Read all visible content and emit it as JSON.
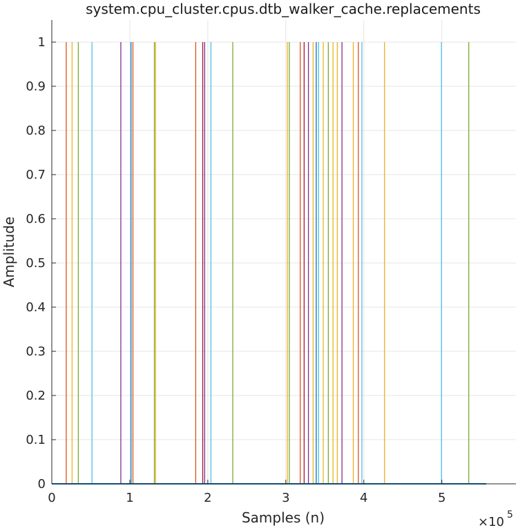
{
  "chart_data": {
    "type": "line",
    "title": "system.cpu_cluster.cpus.dtb_walker_cache.replacements",
    "xlabel": "Samples (n)",
    "ylabel": "Amplitude",
    "x_exponent_label": "×10",
    "x_exponent_power": "5",
    "xlim": [
      0,
      595000
    ],
    "ylim": [
      0,
      1.05
    ],
    "x_ticks": [
      0,
      100000,
      200000,
      300000,
      400000,
      500000
    ],
    "x_tick_labels": [
      "0",
      "1",
      "2",
      "3",
      "4",
      "5"
    ],
    "y_ticks": [
      0,
      0.1,
      0.2,
      0.3,
      0.4,
      0.5,
      0.6,
      0.7,
      0.8,
      0.9,
      1
    ],
    "y_tick_labels": [
      "0",
      "0.1",
      "0.2",
      "0.3",
      "0.4",
      "0.5",
      "0.6",
      "0.7",
      "0.8",
      "0.9",
      "1"
    ],
    "grid": true,
    "baseline": {
      "value": 0,
      "x_end": 557000,
      "color": "#0072bd"
    },
    "spikes": [
      {
        "x": 18500,
        "y": 1,
        "color": "#d95319"
      },
      {
        "x": 26000,
        "y": 1,
        "color": "#edb120"
      },
      {
        "x": 34000,
        "y": 1,
        "color": "#77ac30"
      },
      {
        "x": 51500,
        "y": 1,
        "color": "#4dbeee"
      },
      {
        "x": 88500,
        "y": 1,
        "color": "#7e2f8e"
      },
      {
        "x": 101500,
        "y": 1,
        "color": "#0072bd"
      },
      {
        "x": 104000,
        "y": 1,
        "color": "#d95319"
      },
      {
        "x": 131500,
        "y": 1,
        "color": "#77ac30"
      },
      {
        "x": 133000,
        "y": 1,
        "color": "#edb120"
      },
      {
        "x": 184500,
        "y": 1,
        "color": "#d95319"
      },
      {
        "x": 193500,
        "y": 1,
        "color": "#a2142f"
      },
      {
        "x": 196000,
        "y": 1,
        "color": "#7e2f8e"
      },
      {
        "x": 204000,
        "y": 1,
        "color": "#4dbeee"
      },
      {
        "x": 232000,
        "y": 1,
        "color": "#77ac30"
      },
      {
        "x": 302000,
        "y": 1,
        "color": "#edb120"
      },
      {
        "x": 304500,
        "y": 1,
        "color": "#77ac30"
      },
      {
        "x": 318500,
        "y": 1,
        "color": "#d95319"
      },
      {
        "x": 323500,
        "y": 1,
        "color": "#a2142f"
      },
      {
        "x": 329000,
        "y": 1,
        "color": "#7e2f8e"
      },
      {
        "x": 335000,
        "y": 1,
        "color": "#edb120"
      },
      {
        "x": 339000,
        "y": 1,
        "color": "#0072bd"
      },
      {
        "x": 342000,
        "y": 1,
        "color": "#4dbeee"
      },
      {
        "x": 348000,
        "y": 1,
        "color": "#edb120"
      },
      {
        "x": 354500,
        "y": 1,
        "color": "#77ac30"
      },
      {
        "x": 360500,
        "y": 1,
        "color": "#edb120"
      },
      {
        "x": 366000,
        "y": 1,
        "color": "#edb120"
      },
      {
        "x": 372000,
        "y": 1,
        "color": "#7e2f8e"
      },
      {
        "x": 386500,
        "y": 1,
        "color": "#edb120"
      },
      {
        "x": 393000,
        "y": 1,
        "color": "#d95319"
      },
      {
        "x": 397500,
        "y": 1,
        "color": "#4dbeee"
      },
      {
        "x": 426500,
        "y": 1,
        "color": "#edb120"
      },
      {
        "x": 499500,
        "y": 1,
        "color": "#4dbeee"
      },
      {
        "x": 534500,
        "y": 1,
        "color": "#77ac30"
      }
    ]
  }
}
